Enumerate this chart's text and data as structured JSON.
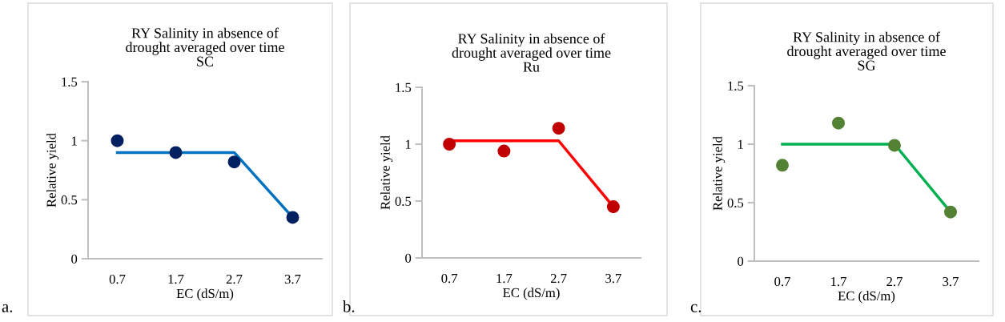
{
  "chart_data": [
    {
      "type": "scatter",
      "title": "RY Salinity in absence of\ndrought averaged over time\nSC",
      "xlabel": "EC (dS/m)",
      "ylabel": "Relative yield",
      "categories": [
        "0.7",
        "1.7",
        "2.7",
        "3.7"
      ],
      "ylim": [
        0,
        1.5
      ],
      "yticks": [
        0,
        0.5,
        1,
        1.5
      ],
      "grid": false,
      "legend": false,
      "annotations": [
        "a."
      ],
      "series": [
        {
          "color": "#002060",
          "marker": "circle",
          "values": [
            1.0,
            0.9,
            0.82,
            0.35
          ]
        },
        {
          "type": "line",
          "color": "#0070c0",
          "marker": "none",
          "line_style": "solid",
          "values": [
            0.9,
            0.9,
            0.9,
            0.35
          ]
        }
      ]
    },
    {
      "type": "scatter",
      "title": "RY Salinity in absence of\ndrought averaged over time\nRu",
      "xlabel": "EC (dS/m)",
      "ylabel": "Relative yield",
      "categories": [
        "0.7",
        "1.7",
        "2.7",
        "3.7"
      ],
      "ylim": [
        0,
        1.5
      ],
      "yticks": [
        0,
        0.5,
        1,
        1.5
      ],
      "grid": false,
      "legend": false,
      "annotations": [
        "b."
      ],
      "series": [
        {
          "color": "#c00000",
          "marker": "circle",
          "values": [
            1.0,
            0.94,
            1.14,
            0.45
          ]
        },
        {
          "type": "line",
          "color": "#ff0000",
          "marker": "none",
          "line_style": "solid",
          "values": [
            1.03,
            1.03,
            1.03,
            0.45
          ]
        }
      ]
    },
    {
      "type": "scatter",
      "title": "RY Salinity in absence of\ndrought averaged over time\nSG",
      "xlabel": "EC (dS/m)",
      "ylabel": "Relative yield",
      "categories": [
        "0.7",
        "1.7",
        "2.7",
        "3.7"
      ],
      "ylim": [
        0,
        1.5
      ],
      "yticks": [
        0,
        0.5,
        1,
        1.5
      ],
      "grid": false,
      "legend": false,
      "annotations": [
        "c."
      ],
      "series": [
        {
          "color": "#548235",
          "marker": "circle",
          "values": [
            0.82,
            1.18,
            0.99,
            0.42
          ]
        },
        {
          "type": "line",
          "color": "#00b050",
          "marker": "none",
          "line_style": "solid",
          "values": [
            1.0,
            1.0,
            1.0,
            0.42
          ]
        }
      ]
    }
  ]
}
